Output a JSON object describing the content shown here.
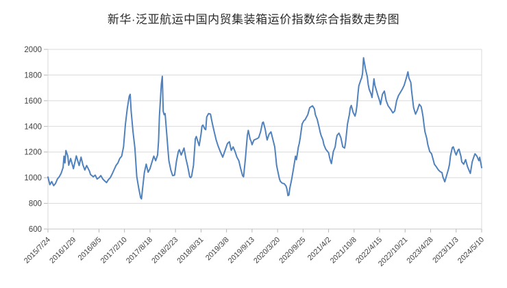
{
  "styles": {
    "background": "#ffffff",
    "grid_color": "#d9d9d9",
    "axis_color": "#c6c6c6",
    "tick_color": "#b7b7b7",
    "label_color": "#404040",
    "title_color": "#2b2b2b",
    "line_color": "#4f81bd"
  },
  "chart_data": {
    "type": "line",
    "title": "新华·泛亚航运中国内贸集装箱运价指数综合指数走势图",
    "xlabel": "",
    "ylabel": "",
    "legend": "none",
    "grid": true,
    "ylim": [
      600,
      2000
    ],
    "y_ticks": [
      600,
      800,
      1000,
      1200,
      1400,
      1600,
      1800,
      2000
    ],
    "x_tick_labels": [
      "2015/7/24",
      "2016/1/29",
      "2016/8/5",
      "2017/2/10",
      "2017/8/18",
      "2018/2/23",
      "2018/8/31",
      "2019/3/8",
      "2019/9/13",
      "2020/3/20",
      "2020/9/25",
      "2021/4/2",
      "2021/10/8",
      "2022/4/15",
      "2022/10/21",
      "2023/4/28",
      "2023/11/3",
      "2024/5/10"
    ],
    "x_tick_weeks": [
      0,
      27,
      54,
      81,
      108,
      135,
      162,
      189,
      216,
      243,
      270,
      297,
      324,
      351,
      378,
      405,
      432,
      459
    ],
    "x_weeks_total": 459,
    "series": [
      {
        "color": "#4f81bd",
        "points": [
          [
            0,
            1005
          ],
          [
            2,
            945
          ],
          [
            4,
            970
          ],
          [
            6,
            938
          ],
          [
            8,
            955
          ],
          [
            10,
            990
          ],
          [
            12,
            1007
          ],
          [
            14,
            1035
          ],
          [
            16,
            1080
          ],
          [
            17,
            1168
          ],
          [
            18,
            1115
          ],
          [
            19,
            1212
          ],
          [
            21,
            1168
          ],
          [
            22,
            1097
          ],
          [
            24,
            1150
          ],
          [
            27,
            1070
          ],
          [
            30,
            1170
          ],
          [
            33,
            1095
          ],
          [
            35,
            1160
          ],
          [
            37,
            1100
          ],
          [
            39,
            1060
          ],
          [
            41,
            1095
          ],
          [
            44,
            1050
          ],
          [
            45,
            1025
          ],
          [
            48,
            1007
          ],
          [
            50,
            1020
          ],
          [
            52,
            990
          ],
          [
            54,
            1000
          ],
          [
            56,
            1016
          ],
          [
            58,
            990
          ],
          [
            60,
            975
          ],
          [
            62,
            962
          ],
          [
            64,
            985
          ],
          [
            66,
            1000
          ],
          [
            68,
            1030
          ],
          [
            70,
            1062
          ],
          [
            72,
            1095
          ],
          [
            74,
            1115
          ],
          [
            76,
            1150
          ],
          [
            78,
            1168
          ],
          [
            80,
            1240
          ],
          [
            82,
            1419
          ],
          [
            84,
            1540
          ],
          [
            86,
            1634
          ],
          [
            87,
            1650
          ],
          [
            88,
            1520
          ],
          [
            90,
            1360
          ],
          [
            92,
            1230
          ],
          [
            94,
            1010
          ],
          [
            96,
            920
          ],
          [
            98,
            845
          ],
          [
            99,
            835
          ],
          [
            100,
            905
          ],
          [
            102,
            1040
          ],
          [
            104,
            1106
          ],
          [
            106,
            1043
          ],
          [
            108,
            1070
          ],
          [
            110,
            1120
          ],
          [
            112,
            1168
          ],
          [
            114,
            1132
          ],
          [
            116,
            1177
          ],
          [
            117,
            1284
          ],
          [
            118,
            1482
          ],
          [
            120,
            1730
          ],
          [
            121,
            1790
          ],
          [
            122,
            1518
          ],
          [
            123,
            1491
          ],
          [
            124,
            1500
          ],
          [
            126,
            1312
          ],
          [
            127,
            1222
          ],
          [
            128,
            1133
          ],
          [
            130,
            1060
          ],
          [
            132,
            1016
          ],
          [
            134,
            1020
          ],
          [
            136,
            1130
          ],
          [
            138,
            1204
          ],
          [
            139,
            1218
          ],
          [
            141,
            1177
          ],
          [
            144,
            1231
          ],
          [
            146,
            1150
          ],
          [
            148,
            1085
          ],
          [
            150,
            1007
          ],
          [
            151,
            1000
          ],
          [
            152,
            1010
          ],
          [
            154,
            1097
          ],
          [
            156,
            1303
          ],
          [
            157,
            1321
          ],
          [
            160,
            1249
          ],
          [
            162,
            1339
          ],
          [
            163,
            1402
          ],
          [
            164,
            1410
          ],
          [
            166,
            1380
          ],
          [
            167,
            1375
          ],
          [
            168,
            1473
          ],
          [
            170,
            1500
          ],
          [
            172,
            1495
          ],
          [
            174,
            1420
          ],
          [
            176,
            1357
          ],
          [
            178,
            1294
          ],
          [
            180,
            1249
          ],
          [
            182,
            1210
          ],
          [
            185,
            1160
          ],
          [
            187,
            1204
          ],
          [
            190,
            1267
          ],
          [
            192,
            1280
          ],
          [
            194,
            1213
          ],
          [
            196,
            1240
          ],
          [
            198,
            1204
          ],
          [
            200,
            1160
          ],
          [
            202,
            1132
          ],
          [
            204,
            1070
          ],
          [
            206,
            1015
          ],
          [
            207,
            1007
          ],
          [
            209,
            1150
          ],
          [
            211,
            1330
          ],
          [
            212,
            1369
          ],
          [
            214,
            1300
          ],
          [
            215,
            1284
          ],
          [
            216,
            1257
          ],
          [
            218,
            1293
          ],
          [
            220,
            1300
          ],
          [
            221,
            1303
          ],
          [
            223,
            1312
          ],
          [
            225,
            1357
          ],
          [
            226,
            1392
          ],
          [
            227,
            1428
          ],
          [
            228,
            1433
          ],
          [
            230,
            1375
          ],
          [
            231,
            1330
          ],
          [
            232,
            1294
          ],
          [
            234,
            1339
          ],
          [
            236,
            1357
          ],
          [
            238,
            1300
          ],
          [
            240,
            1240
          ],
          [
            241,
            1168
          ],
          [
            242,
            1097
          ],
          [
            243,
            1060
          ],
          [
            244,
            1025
          ],
          [
            245,
            990
          ],
          [
            246,
            971
          ],
          [
            248,
            957
          ],
          [
            250,
            953
          ],
          [
            252,
            935
          ],
          [
            253,
            908
          ],
          [
            254,
            860
          ],
          [
            255,
            865
          ],
          [
            256,
            918
          ],
          [
            258,
            990
          ],
          [
            260,
            1078
          ],
          [
            262,
            1168
          ],
          [
            263,
            1140
          ],
          [
            265,
            1240
          ],
          [
            266,
            1267
          ],
          [
            267,
            1312
          ],
          [
            269,
            1419
          ],
          [
            271,
            1446
          ],
          [
            272,
            1450
          ],
          [
            275,
            1491
          ],
          [
            277,
            1545
          ],
          [
            280,
            1560
          ],
          [
            282,
            1536
          ],
          [
            283,
            1491
          ],
          [
            285,
            1455
          ],
          [
            287,
            1392
          ],
          [
            288,
            1357
          ],
          [
            289,
            1330
          ],
          [
            291,
            1294
          ],
          [
            292,
            1258
          ],
          [
            294,
            1222
          ],
          [
            297,
            1195
          ],
          [
            298,
            1159
          ],
          [
            299,
            1132
          ],
          [
            300,
            1110
          ],
          [
            302,
            1204
          ],
          [
            304,
            1240
          ],
          [
            305,
            1294
          ],
          [
            306,
            1330
          ],
          [
            308,
            1347
          ],
          [
            310,
            1312
          ],
          [
            311,
            1276
          ],
          [
            312,
            1240
          ],
          [
            314,
            1231
          ],
          [
            315,
            1276
          ],
          [
            316,
            1347
          ],
          [
            317,
            1419
          ],
          [
            319,
            1491
          ],
          [
            320,
            1545
          ],
          [
            321,
            1563
          ],
          [
            323,
            1509
          ],
          [
            325,
            1480
          ],
          [
            326,
            1510
          ],
          [
            327,
            1563
          ],
          [
            328,
            1643
          ],
          [
            329,
            1715
          ],
          [
            331,
            1760
          ],
          [
            332,
            1778
          ],
          [
            333,
            1814
          ],
          [
            334,
            1935
          ],
          [
            336,
            1849
          ],
          [
            338,
            1786
          ],
          [
            339,
            1724
          ],
          [
            340,
            1688
          ],
          [
            342,
            1652
          ],
          [
            343,
            1625
          ],
          [
            344,
            1700
          ],
          [
            345,
            1770
          ],
          [
            346,
            1720
          ],
          [
            349,
            1645
          ],
          [
            351,
            1600
          ],
          [
            352,
            1570
          ],
          [
            354,
            1650
          ],
          [
            356,
            1675
          ],
          [
            358,
            1600
          ],
          [
            360,
            1560
          ],
          [
            363,
            1530
          ],
          [
            365,
            1505
          ],
          [
            367,
            1520
          ],
          [
            369,
            1600
          ],
          [
            371,
            1640
          ],
          [
            373,
            1665
          ],
          [
            375,
            1690
          ],
          [
            377,
            1720
          ],
          [
            379,
            1770
          ],
          [
            381,
            1825
          ],
          [
            382,
            1778
          ],
          [
            384,
            1742
          ],
          [
            385,
            1670
          ],
          [
            386,
            1607
          ],
          [
            387,
            1545
          ],
          [
            389,
            1495
          ],
          [
            391,
            1527
          ],
          [
            393,
            1572
          ],
          [
            395,
            1554
          ],
          [
            396,
            1518
          ],
          [
            397,
            1473
          ],
          [
            398,
            1410
          ],
          [
            399,
            1357
          ],
          [
            401,
            1303
          ],
          [
            402,
            1258
          ],
          [
            403,
            1231
          ],
          [
            404,
            1204
          ],
          [
            406,
            1186
          ],
          [
            407,
            1159
          ],
          [
            408,
            1132
          ],
          [
            409,
            1105
          ],
          [
            411,
            1085
          ],
          [
            413,
            1062
          ],
          [
            415,
            1048
          ],
          [
            417,
            1040
          ],
          [
            418,
            1005
          ],
          [
            420,
            968
          ],
          [
            422,
            1020
          ],
          [
            424,
            1070
          ],
          [
            425,
            1105
          ],
          [
            426,
            1170
          ],
          [
            428,
            1235
          ],
          [
            429,
            1240
          ],
          [
            431,
            1195
          ],
          [
            432,
            1177
          ],
          [
            434,
            1215
          ],
          [
            435,
            1222
          ],
          [
            437,
            1168
          ],
          [
            438,
            1123
          ],
          [
            440,
            1105
          ],
          [
            442,
            1141
          ],
          [
            444,
            1087
          ],
          [
            446,
            1051
          ],
          [
            447,
            1034
          ],
          [
            449,
            1123
          ],
          [
            451,
            1168
          ],
          [
            452,
            1186
          ],
          [
            454,
            1168
          ],
          [
            456,
            1132
          ],
          [
            457,
            1159
          ],
          [
            459,
            1078
          ]
        ]
      }
    ]
  }
}
